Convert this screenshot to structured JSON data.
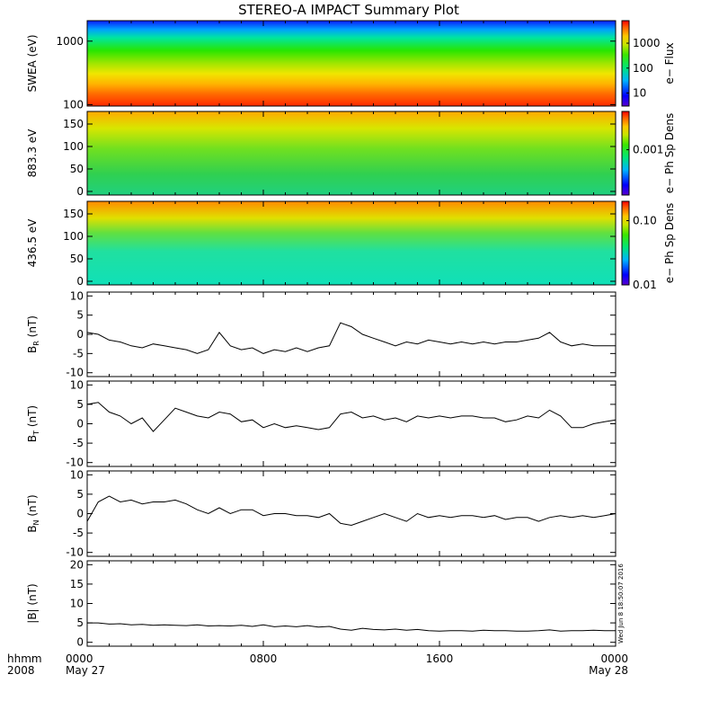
{
  "title": "STEREO-A IMPACT Summary Plot",
  "stamp": "Wed Jun  8 18:50:07 2016",
  "time_axis": {
    "row_label": "hhmm",
    "year_label": "2008",
    "ticks": [
      {
        "label": "0000",
        "date": "May 27",
        "hours": 0
      },
      {
        "label": "0800",
        "date": "",
        "hours": 8
      },
      {
        "label": "1600",
        "date": "",
        "hours": 16
      },
      {
        "label": "0000",
        "date": "May 28",
        "hours": 24
      }
    ],
    "range_hours": [
      0,
      24
    ]
  },
  "chart_data": [
    {
      "type": "heatmap",
      "ylabel": "SWEA (eV)",
      "ylog": true,
      "ylim": [
        95,
        2100
      ],
      "yticks": [
        {
          "v": 1000,
          "label": "1000"
        },
        {
          "v": 100,
          "label": "100"
        }
      ],
      "colorbar": {
        "label": "e− Flux",
        "log": true,
        "range": [
          3,
          8000
        ],
        "ticks": [
          {
            "v": 1000,
            "label": "1000"
          },
          {
            "v": 100,
            "label": "100"
          },
          {
            "v": 10,
            "label": "10"
          }
        ]
      }
    },
    {
      "type": "heatmap",
      "ylabel": "883.3 eV",
      "ylim": [
        -8,
        178
      ],
      "yticks": [
        {
          "v": 150,
          "label": "150"
        },
        {
          "v": 100,
          "label": "100"
        },
        {
          "v": 50,
          "label": "50"
        },
        {
          "v": 0,
          "label": "0"
        }
      ],
      "colorbar": {
        "label": "e− Ph Sp Dens",
        "log": true,
        "range": [
          0.0001,
          0.007
        ],
        "ticks": [
          {
            "v": 0.001,
            "label": "0.001"
          }
        ]
      }
    },
    {
      "type": "heatmap",
      "ylabel": "436.5 eV",
      "ylim": [
        -8,
        178
      ],
      "yticks": [
        {
          "v": 150,
          "label": "150"
        },
        {
          "v": 100,
          "label": "100"
        },
        {
          "v": 50,
          "label": "50"
        },
        {
          "v": 0,
          "label": "0"
        }
      ],
      "colorbar": {
        "label": "e− Ph Sp Dens",
        "log": true,
        "range": [
          0.01,
          0.2
        ],
        "ticks": [
          {
            "v": 0.1,
            "label": "0.10"
          },
          {
            "v": 0.01,
            "label": "0.01"
          }
        ]
      }
    },
    {
      "type": "line",
      "ylabel": "B_R (nT)",
      "ylim": [
        -11,
        11
      ],
      "yticks": [
        10,
        5,
        0,
        -5,
        -10
      ],
      "series": [
        {
          "x": [
            0,
            0.5,
            1,
            1.5,
            2,
            2.5,
            3,
            3.5,
            4,
            4.5,
            5,
            5.5,
            6,
            6.5,
            7,
            7.5,
            8,
            8.5,
            9,
            9.5,
            10,
            10.5,
            11,
            11.5,
            12,
            12.5,
            13,
            13.5,
            14,
            14.5,
            15,
            15.5,
            16,
            16.5,
            17,
            17.5,
            18,
            18.5,
            19,
            19.5,
            20,
            20.5,
            21,
            21.5,
            22,
            22.5,
            23,
            23.5,
            24
          ],
          "y": [
            0.5,
            0,
            -1.5,
            -2,
            -3,
            -3.5,
            -2.5,
            -3,
            -3.5,
            -4,
            -5,
            -4,
            0.5,
            -3,
            -4,
            -3.5,
            -5,
            -4,
            -4.5,
            -3.5,
            -4.5,
            -3.5,
            -3,
            3,
            2,
            0,
            -1,
            -2,
            -3,
            -2,
            -2.5,
            -1.5,
            -2,
            -2.5,
            -2,
            -2.5,
            -2,
            -2.5,
            -2,
            -2,
            -1.5,
            -1,
            0.5,
            -2,
            -3,
            -2.5,
            -3,
            -3,
            -3
          ]
        }
      ]
    },
    {
      "type": "line",
      "ylabel": "B_T (nT)",
      "ylim": [
        -11,
        11
      ],
      "yticks": [
        10,
        5,
        0,
        -5,
        -10
      ],
      "series": [
        {
          "x": [
            0,
            0.5,
            1,
            1.5,
            2,
            2.5,
            3,
            3.5,
            4,
            4.5,
            5,
            5.5,
            6,
            6.5,
            7,
            7.5,
            8,
            8.5,
            9,
            9.5,
            10,
            10.5,
            11,
            11.5,
            12,
            12.5,
            13,
            13.5,
            14,
            14.5,
            15,
            15.5,
            16,
            16.5,
            17,
            17.5,
            18,
            18.5,
            19,
            19.5,
            20,
            20.5,
            21,
            21.5,
            22,
            22.5,
            23,
            23.5,
            24
          ],
          "y": [
            5,
            5.5,
            3,
            2,
            0,
            1.5,
            -2,
            1,
            4,
            3,
            2,
            1.5,
            3,
            2.5,
            0.5,
            1,
            -1,
            0,
            -1,
            -0.5,
            -1,
            -1.5,
            -1,
            2.5,
            3,
            1.5,
            2,
            1,
            1.5,
            0.5,
            2,
            1.5,
            2,
            1.5,
            2,
            2,
            1.5,
            1.5,
            0.5,
            1,
            2,
            1.5,
            3.5,
            2,
            -1,
            -1,
            0,
            0.5,
            1
          ]
        }
      ]
    },
    {
      "type": "line",
      "ylabel": "B_N (nT)",
      "ylim": [
        -11,
        11
      ],
      "yticks": [
        10,
        5,
        0,
        -5,
        -10
      ],
      "series": [
        {
          "x": [
            0,
            0.5,
            1,
            1.5,
            2,
            2.5,
            3,
            3.5,
            4,
            4.5,
            5,
            5.5,
            6,
            6.5,
            7,
            7.5,
            8,
            8.5,
            9,
            9.5,
            10,
            10.5,
            11,
            11.5,
            12,
            12.5,
            13,
            13.5,
            14,
            14.5,
            15,
            15.5,
            16,
            16.5,
            17,
            17.5,
            18,
            18.5,
            19,
            19.5,
            20,
            20.5,
            21,
            21.5,
            22,
            22.5,
            23,
            23.5,
            24
          ],
          "y": [
            -2,
            3,
            4.5,
            3,
            3.5,
            2.5,
            3,
            3,
            3.5,
            2.5,
            1,
            0,
            1.5,
            0,
            1,
            1,
            -0.5,
            0,
            0,
            -0.5,
            -0.5,
            -1,
            0,
            -2.5,
            -3,
            -2,
            -1,
            0,
            -1,
            -2,
            0,
            -1,
            -0.5,
            -1,
            -0.5,
            -0.5,
            -1,
            -0.5,
            -1.5,
            -1,
            -1,
            -2,
            -1,
            -0.5,
            -1,
            -0.5,
            -1,
            -0.5,
            0
          ]
        }
      ]
    },
    {
      "type": "line",
      "ylabel": "|B| (nT)",
      "ylim": [
        -1,
        21
      ],
      "yticks": [
        20,
        15,
        10,
        5,
        0
      ],
      "series": [
        {
          "x": [
            0,
            0.5,
            1,
            1.5,
            2,
            2.5,
            3,
            3.5,
            4,
            4.5,
            5,
            5.5,
            6,
            6.5,
            7,
            7.5,
            8,
            8.5,
            9,
            9.5,
            10,
            10.5,
            11,
            11.5,
            12,
            12.5,
            13,
            13.5,
            14,
            14.5,
            15,
            15.5,
            16,
            16.5,
            17,
            17.5,
            18,
            18.5,
            19,
            19.5,
            20,
            20.5,
            21,
            21.5,
            22,
            22.5,
            23,
            23.5,
            24
          ],
          "y": [
            5,
            5,
            4.7,
            4.8,
            4.5,
            4.6,
            4.4,
            4.5,
            4.4,
            4.3,
            4.5,
            4.2,
            4.3,
            4.2,
            4.4,
            4.1,
            4.5,
            4,
            4.2,
            4,
            4.3,
            3.9,
            4.1,
            3.4,
            3.1,
            3.6,
            3.3,
            3.2,
            3.4,
            3.1,
            3.3,
            3,
            2.9,
            3,
            3,
            2.9,
            3.1,
            3,
            3,
            2.9,
            2.9,
            3,
            3.2,
            2.9,
            3,
            3,
            3.1,
            3,
            3
          ]
        }
      ]
    }
  ]
}
